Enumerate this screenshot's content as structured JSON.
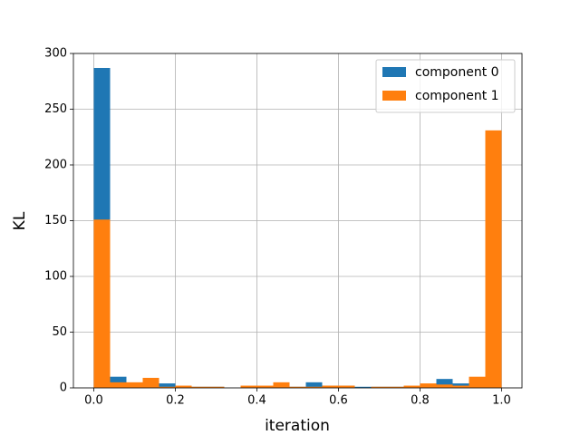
{
  "chart_data": {
    "type": "histogram",
    "xlabel": "iteration",
    "ylabel": "KL",
    "bins": [
      0,
      0.04,
      0.08,
      0.12,
      0.16,
      0.2,
      0.24,
      0.28,
      0.32,
      0.36,
      0.4,
      0.44,
      0.48,
      0.52,
      0.56,
      0.6,
      0.64,
      0.68,
      0.72,
      0.76,
      0.8,
      0.84,
      0.88,
      0.92,
      0.96,
      1
    ],
    "series": [
      {
        "name": "component 0",
        "color": "#1f77b4",
        "values": [
          287,
          10,
          4,
          3,
          4,
          1,
          1,
          1,
          0,
          1,
          1,
          1,
          1,
          5,
          2,
          2,
          1,
          1,
          1,
          1,
          1,
          8,
          4,
          2,
          0
        ]
      },
      {
        "name": "component 1",
        "color": "#ff7f0e",
        "values": [
          151,
          5,
          5,
          9,
          1,
          2,
          1,
          1,
          0,
          2,
          2,
          5,
          1,
          1,
          2,
          2,
          0,
          1,
          1,
          2,
          4,
          3,
          2,
          10,
          231
        ]
      }
    ],
    "xlim": [
      -0.05,
      1.05
    ],
    "ylim": [
      0,
      300
    ],
    "xticks": [
      {
        "value": 0,
        "label": "0.0"
      },
      0.2,
      0.4,
      0.6,
      0.8,
      {
        "value": 1,
        "label": "1.0"
      }
    ],
    "yticks": [
      0,
      50,
      100,
      150,
      200,
      250,
      300
    ],
    "grid": true,
    "legend": "upper right"
  }
}
